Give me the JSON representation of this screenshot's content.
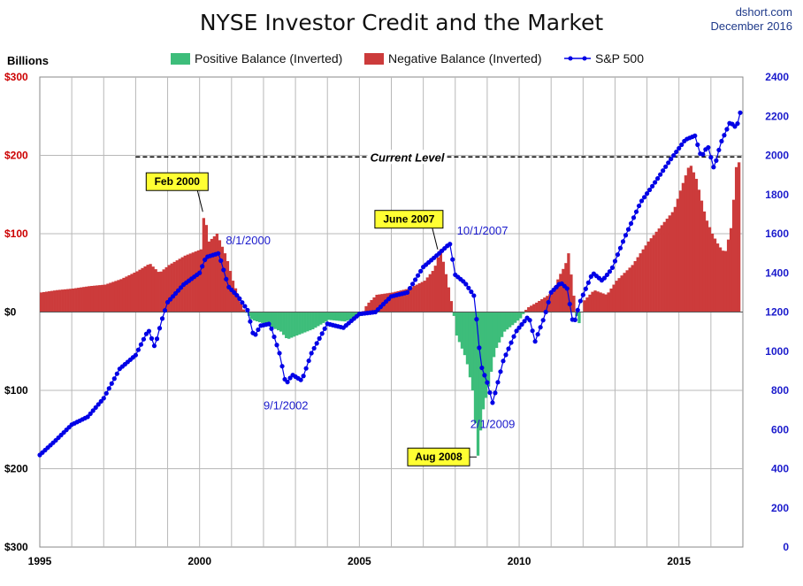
{
  "chart_data": {
    "type": "bar+line",
    "title": "NYSE Investor Credit and the Market",
    "source": "dshort.com",
    "date_label": "December 2016",
    "left_axis": {
      "unit_label": "Billions",
      "range": [
        -300,
        300
      ],
      "ticks": [
        {
          "value": 300,
          "label": "$300",
          "color": "#cc0000"
        },
        {
          "value": 200,
          "label": "$200",
          "color": "#cc0000"
        },
        {
          "value": 100,
          "label": "$100",
          "color": "#cc0000"
        },
        {
          "value": 0,
          "label": "$0",
          "color": "#000000"
        },
        {
          "value": -100,
          "label": "$100",
          "color": "#000000"
        },
        {
          "value": -200,
          "label": "$200",
          "color": "#000000"
        },
        {
          "value": -300,
          "label": "$300",
          "color": "#000000"
        }
      ]
    },
    "right_axis": {
      "range": [
        0,
        2400
      ],
      "ticks": [
        "0",
        "200",
        "400",
        "600",
        "800",
        "1000",
        "1200",
        "1400",
        "1600",
        "1800",
        "2000",
        "2200",
        "2400"
      ]
    },
    "x_axis": {
      "range": [
        1995,
        2017
      ],
      "ticks": [
        {
          "value": 1995,
          "label": "1995"
        },
        {
          "value": 2000,
          "label": "2000"
        },
        {
          "value": 2005,
          "label": "2005"
        },
        {
          "value": 2010,
          "label": "2010"
        },
        {
          "value": 2015,
          "label": "2015"
        }
      ]
    },
    "legend": [
      {
        "name": "Positive Balance (Inverted)",
        "color": "#3dbd7a",
        "kind": "box"
      },
      {
        "name": "Negative Balance (Inverted)",
        "color": "#cc3b3b",
        "kind": "box"
      },
      {
        "name": "S&P 500",
        "color": "#0000e6",
        "kind": "line"
      }
    ],
    "colors": {
      "positive": "#3dbd7a",
      "negative": "#cc3b3b",
      "sp500": "#0000e6"
    },
    "credit_balance_series": [
      [
        1995.0,
        25
      ],
      [
        1995.5,
        28
      ],
      [
        1996.0,
        30
      ],
      [
        1996.5,
        33
      ],
      [
        1997.0,
        35
      ],
      [
        1997.5,
        42
      ],
      [
        1998.0,
        52
      ],
      [
        1998.4,
        62
      ],
      [
        1998.7,
        50
      ],
      [
        1999.0,
        60
      ],
      [
        1999.5,
        72
      ],
      [
        2000.0,
        80
      ],
      [
        2000.1,
        128
      ],
      [
        2000.25,
        90
      ],
      [
        2000.5,
        100
      ],
      [
        2000.8,
        70
      ],
      [
        2001.0,
        40
      ],
      [
        2001.3,
        5
      ],
      [
        2001.6,
        -10
      ],
      [
        2002.0,
        -15
      ],
      [
        2002.5,
        -25
      ],
      [
        2002.7,
        -35
      ],
      [
        2003.0,
        -30
      ],
      [
        2003.5,
        -22
      ],
      [
        2004.0,
        -10
      ],
      [
        2004.5,
        -12
      ],
      [
        2005.0,
        -5
      ],
      [
        2005.2,
        10
      ],
      [
        2005.5,
        22
      ],
      [
        2006.0,
        25
      ],
      [
        2006.5,
        30
      ],
      [
        2007.0,
        40
      ],
      [
        2007.3,
        55
      ],
      [
        2007.5,
        80
      ],
      [
        2007.7,
        42
      ],
      [
        2007.9,
        0
      ],
      [
        2008.0,
        -30
      ],
      [
        2008.3,
        -60
      ],
      [
        2008.5,
        -100
      ],
      [
        2008.67,
        -185
      ],
      [
        2008.8,
        -130
      ],
      [
        2009.0,
        -95
      ],
      [
        2009.2,
        -50
      ],
      [
        2009.5,
        -25
      ],
      [
        2009.8,
        -15
      ],
      [
        2010.0,
        -8
      ],
      [
        2010.2,
        5
      ],
      [
        2010.5,
        12
      ],
      [
        2011.0,
        25
      ],
      [
        2011.2,
        45
      ],
      [
        2011.4,
        60
      ],
      [
        2011.5,
        75
      ],
      [
        2011.7,
        10
      ],
      [
        2011.8,
        -20
      ],
      [
        2012.0,
        15
      ],
      [
        2012.3,
        28
      ],
      [
        2012.7,
        22
      ],
      [
        2013.0,
        40
      ],
      [
        2013.5,
        60
      ],
      [
        2014.0,
        90
      ],
      [
        2014.5,
        115
      ],
      [
        2014.8,
        130
      ],
      [
        2015.0,
        155
      ],
      [
        2015.3,
        190
      ],
      [
        2015.5,
        170
      ],
      [
        2015.8,
        120
      ],
      [
        2016.0,
        100
      ],
      [
        2016.2,
        85
      ],
      [
        2016.4,
        75
      ],
      [
        2016.6,
        110
      ],
      [
        2016.75,
        185
      ],
      [
        2016.9,
        196
      ]
    ],
    "sp500_series": [
      [
        1995.0,
        470
      ],
      [
        1995.5,
        545
      ],
      [
        1996.0,
        625
      ],
      [
        1996.5,
        665
      ],
      [
        1997.0,
        760
      ],
      [
        1997.5,
        910
      ],
      [
        1998.0,
        980
      ],
      [
        1998.4,
        1110
      ],
      [
        1998.6,
        1020
      ],
      [
        1998.8,
        1150
      ],
      [
        1999.0,
        1250
      ],
      [
        1999.5,
        1340
      ],
      [
        2000.0,
        1400
      ],
      [
        2000.2,
        1480
      ],
      [
        2000.6,
        1500
      ],
      [
        2000.9,
        1330
      ],
      [
        2001.2,
        1280
      ],
      [
        2001.5,
        1210
      ],
      [
        2001.7,
        1070
      ],
      [
        2001.9,
        1130
      ],
      [
        2002.2,
        1140
      ],
      [
        2002.5,
        990
      ],
      [
        2002.7,
        830
      ],
      [
        2002.9,
        880
      ],
      [
        2003.2,
        850
      ],
      [
        2003.5,
        990
      ],
      [
        2004.0,
        1140
      ],
      [
        2004.5,
        1120
      ],
      [
        2005.0,
        1190
      ],
      [
        2005.5,
        1200
      ],
      [
        2006.0,
        1280
      ],
      [
        2006.5,
        1300
      ],
      [
        2007.0,
        1430
      ],
      [
        2007.5,
        1500
      ],
      [
        2007.83,
        1550
      ],
      [
        2008.0,
        1390
      ],
      [
        2008.3,
        1350
      ],
      [
        2008.6,
        1280
      ],
      [
        2008.8,
        930
      ],
      [
        2009.0,
        840
      ],
      [
        2009.17,
        735
      ],
      [
        2009.5,
        950
      ],
      [
        2009.9,
        1100
      ],
      [
        2010.3,
        1180
      ],
      [
        2010.5,
        1050
      ],
      [
        2010.8,
        1180
      ],
      [
        2011.0,
        1300
      ],
      [
        2011.3,
        1350
      ],
      [
        2011.5,
        1320
      ],
      [
        2011.7,
        1130
      ],
      [
        2011.9,
        1250
      ],
      [
        2012.3,
        1400
      ],
      [
        2012.6,
        1360
      ],
      [
        2012.9,
        1420
      ],
      [
        2013.3,
        1580
      ],
      [
        2013.8,
        1760
      ],
      [
        2014.2,
        1850
      ],
      [
        2014.7,
        1970
      ],
      [
        2015.2,
        2080
      ],
      [
        2015.5,
        2100
      ],
      [
        2015.7,
        1990
      ],
      [
        2015.9,
        2050
      ],
      [
        2016.1,
        1930
      ],
      [
        2016.3,
        2060
      ],
      [
        2016.6,
        2170
      ],
      [
        2016.8,
        2140
      ],
      [
        2016.95,
        2240
      ]
    ],
    "reference_line": {
      "label": "Current Level",
      "value": 198,
      "x_start": 1998.0
    },
    "callouts": [
      {
        "label": "Feb 2000",
        "target_x": 2000.1,
        "target_value": 128
      },
      {
        "label": "June 2007",
        "target_x": 2007.45,
        "target_value": 80
      },
      {
        "label": "Aug 2008",
        "target_x": 2008.67,
        "target_value": -185
      }
    ],
    "annotations": [
      {
        "label": "8/1/2000",
        "x": 2000.6
      },
      {
        "label": "9/1/2002",
        "x": 2002.7
      },
      {
        "label": "10/1/2007",
        "x": 2007.83
      },
      {
        "label": "2/1/2009",
        "x": 2009.17
      }
    ]
  }
}
